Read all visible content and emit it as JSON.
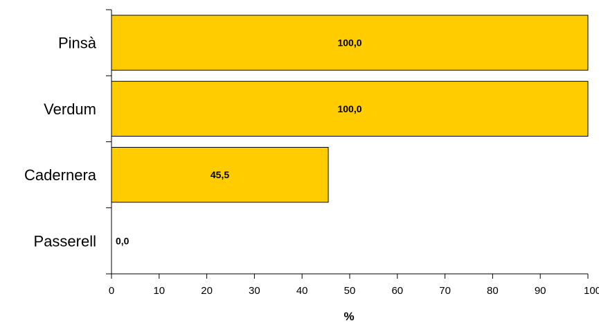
{
  "chart_data": {
    "type": "bar",
    "orientation": "horizontal",
    "categories": [
      "Pinsà",
      "Verdum",
      "Cadernera",
      "Passerell"
    ],
    "values": [
      100.0,
      100.0,
      45.5,
      0.0
    ],
    "data_labels": [
      "100,0",
      "100,0",
      "45,5",
      "0,0"
    ],
    "title": "",
    "xlabel": "%",
    "ylabel": "",
    "xlim": [
      0,
      100
    ],
    "x_ticks": [
      "0",
      "10",
      "20",
      "30",
      "40",
      "50",
      "60",
      "70",
      "80",
      "90",
      "100"
    ],
    "grid": false,
    "legend": "none",
    "colors": {
      "bar_fill": "#FFCC00",
      "bar_stroke": "#000000",
      "axis": "#000000",
      "text": "#000000"
    }
  }
}
